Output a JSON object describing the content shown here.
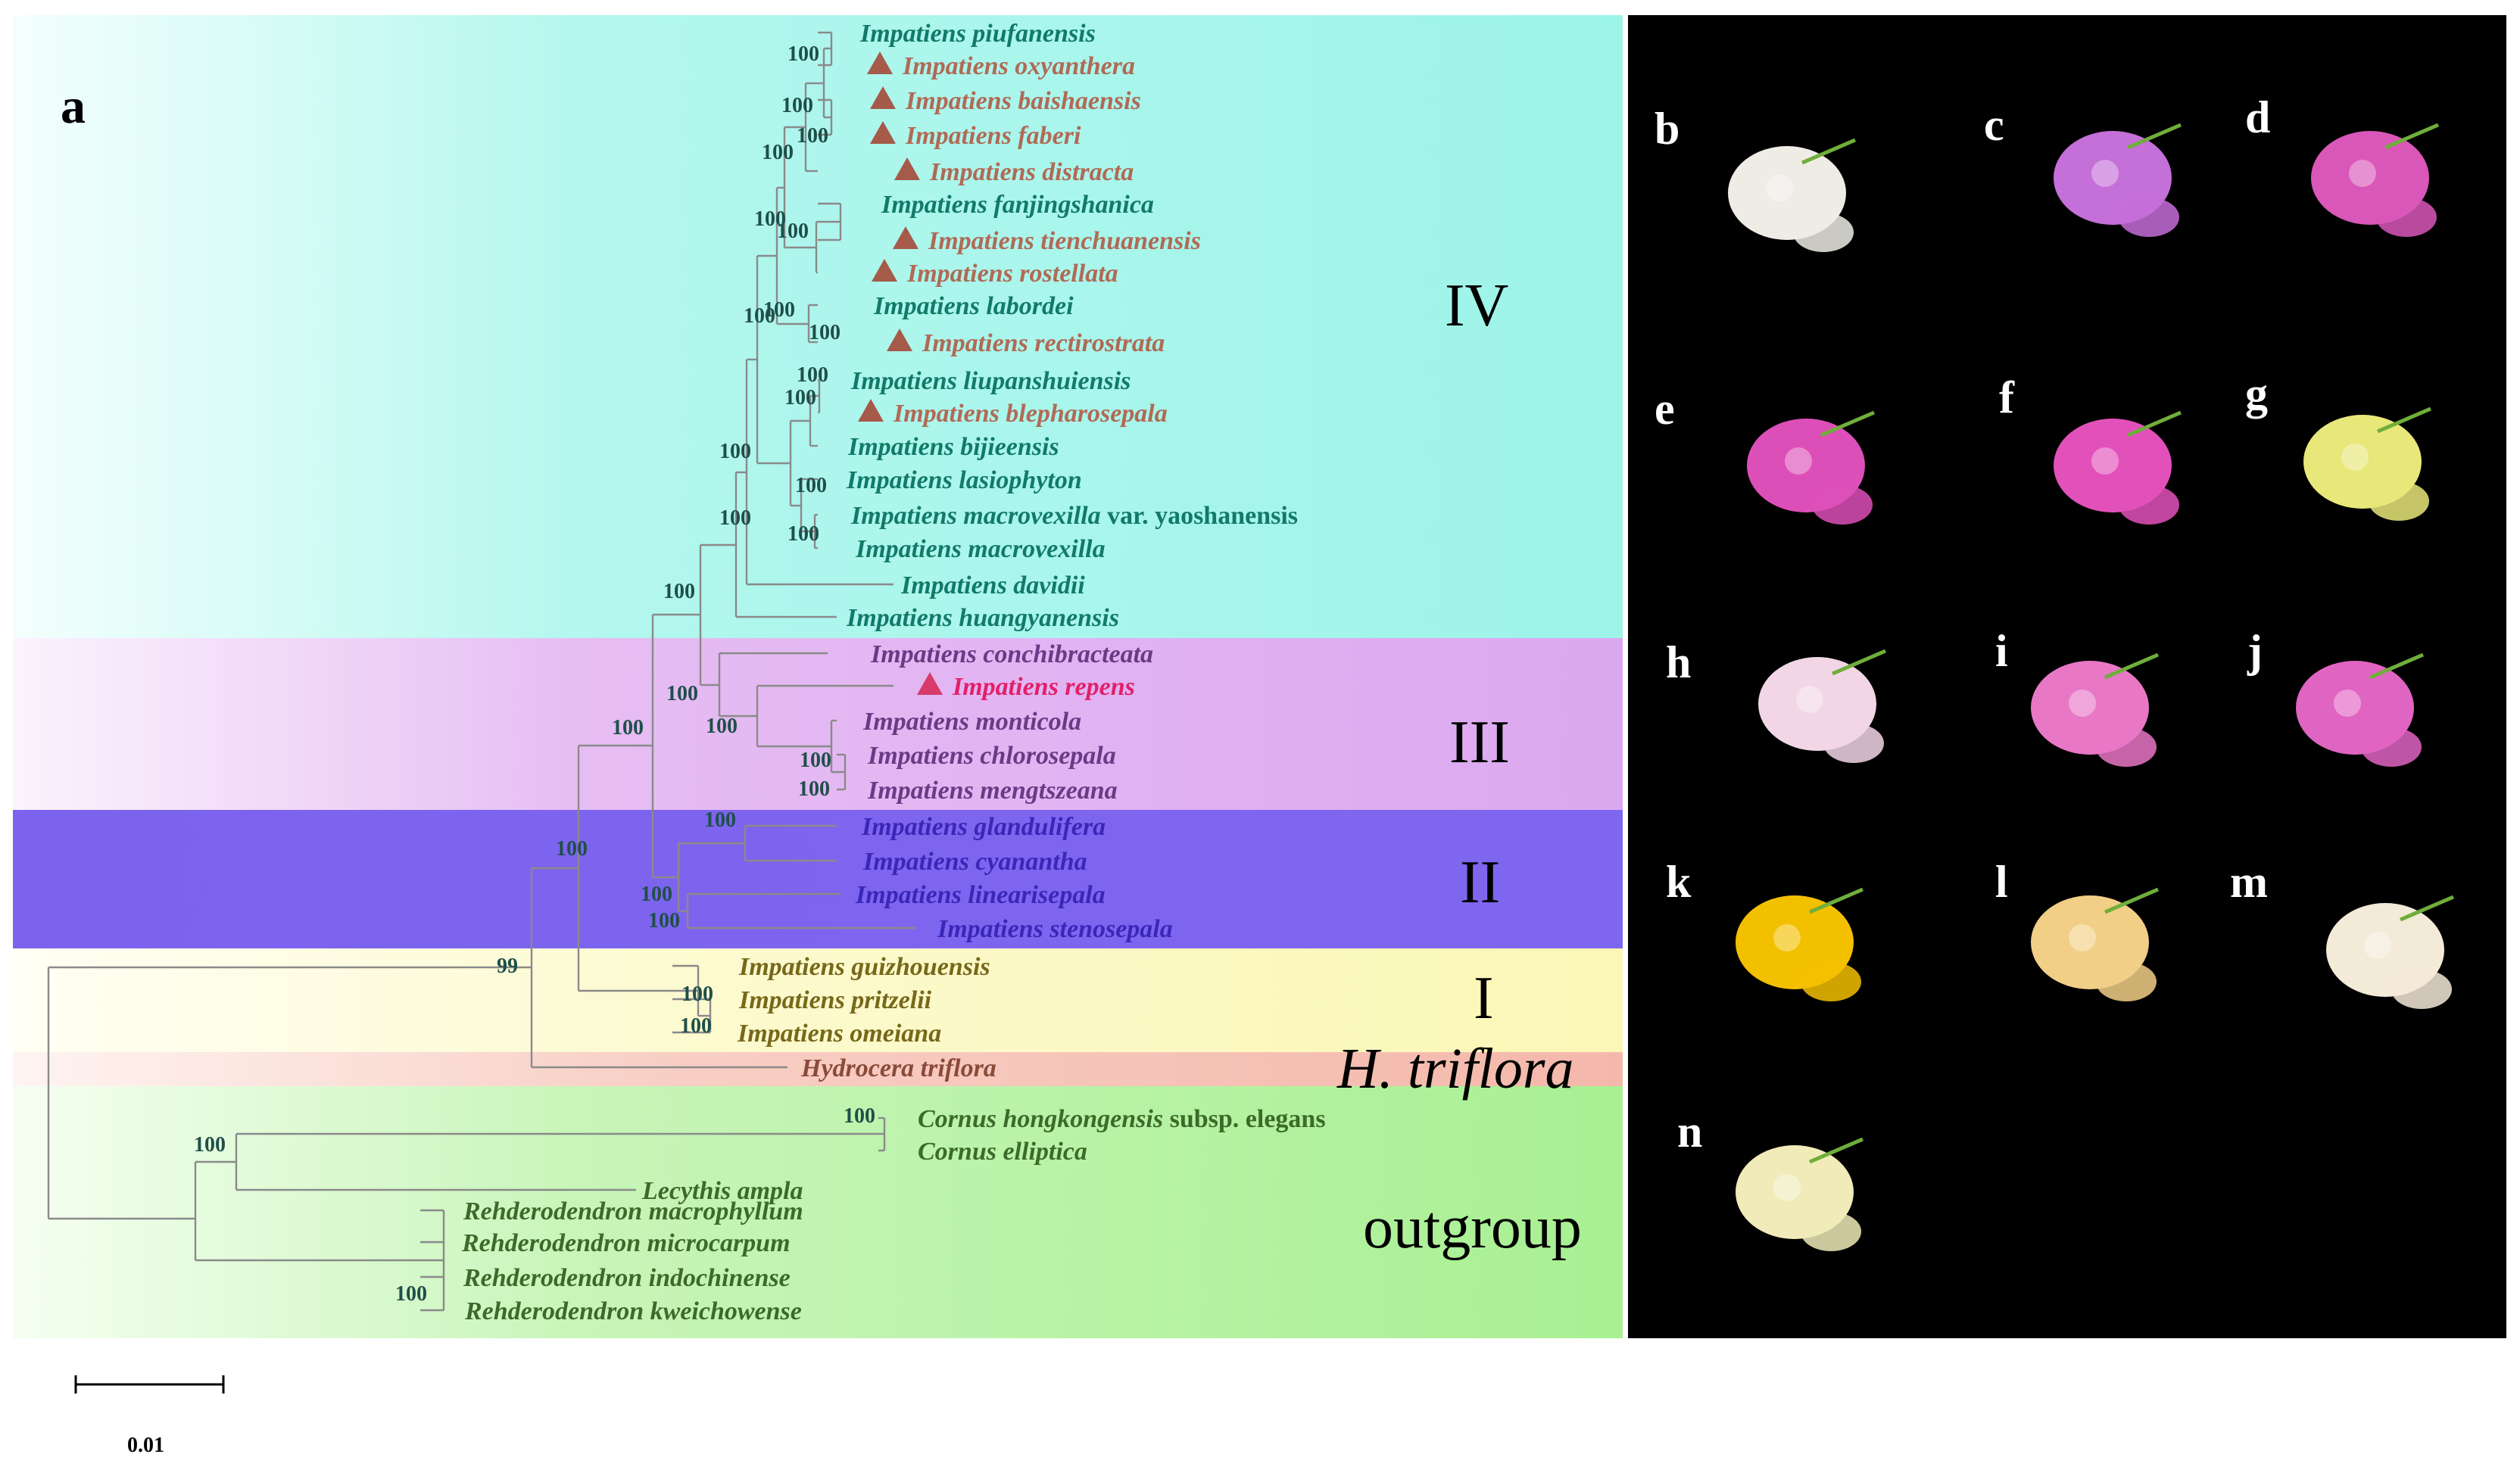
{
  "panel_label": "a",
  "scale_bar": {
    "label": "0.01"
  },
  "clades": [
    {
      "id": "IV",
      "label": "IV"
    },
    {
      "id": "III",
      "label": "III"
    },
    {
      "id": "II",
      "label": "II"
    },
    {
      "id": "I",
      "label": "I"
    },
    {
      "id": "htriflora",
      "label": "H. triflora"
    },
    {
      "id": "outgroup",
      "label": "outgroup"
    }
  ],
  "taxa": [
    {
      "name": "Impatiens piufanensis",
      "clade": "IV",
      "marked": false
    },
    {
      "name": "Impatiens oxyanthera",
      "clade": "IV",
      "marked": true
    },
    {
      "name": "Impatiens baishaensis",
      "clade": "IV",
      "marked": true
    },
    {
      "name": "Impatiens faberi",
      "clade": "IV",
      "marked": true
    },
    {
      "name": "Impatiens distracta",
      "clade": "IV",
      "marked": true
    },
    {
      "name": "Impatiens fanjingshanica",
      "clade": "IV",
      "marked": false
    },
    {
      "name": "Impatiens tienchuanensis",
      "clade": "IV",
      "marked": true
    },
    {
      "name": "Impatiens rostellata",
      "clade": "IV",
      "marked": true
    },
    {
      "name": "Impatiens labordei",
      "clade": "IV",
      "marked": false
    },
    {
      "name": "Impatiens rectirostrata",
      "clade": "IV",
      "marked": true
    },
    {
      "name": "Impatiens liupanshuiensis",
      "clade": "IV",
      "marked": false
    },
    {
      "name": "Impatiens blepharosepala",
      "clade": "IV",
      "marked": true
    },
    {
      "name": "Impatiens bijieensis",
      "clade": "IV",
      "marked": false
    },
    {
      "name": "Impatiens lasiophyton",
      "clade": "IV",
      "marked": false
    },
    {
      "name": "Impatiens macrovexilla",
      "suffix": " var. yaoshanensis",
      "clade": "IV",
      "marked": false
    },
    {
      "name": "Impatiens macrovexilla",
      "clade": "IV",
      "marked": false
    },
    {
      "name": "Impatiens davidii",
      "clade": "IV",
      "marked": false
    },
    {
      "name": "Impatiens huangyanensis",
      "clade": "IV",
      "marked": false
    },
    {
      "name": "Impatiens conchibracteata",
      "clade": "III",
      "marked": false
    },
    {
      "name": "Impatiens repens",
      "clade": "III",
      "marked": true,
      "highlight": true
    },
    {
      "name": "Impatiens monticola",
      "clade": "III",
      "marked": false
    },
    {
      "name": "Impatiens chlorosepala",
      "clade": "III",
      "marked": false
    },
    {
      "name": "Impatiens mengtszeana",
      "clade": "III",
      "marked": false
    },
    {
      "name": "Impatiens glandulifera",
      "clade": "II",
      "marked": false
    },
    {
      "name": "Impatiens cyanantha",
      "clade": "II",
      "marked": false
    },
    {
      "name": "Impatiens linearisepala",
      "clade": "II",
      "marked": false
    },
    {
      "name": "Impatiens stenosepala",
      "clade": "II",
      "marked": false
    },
    {
      "name": "Impatiens guizhouensis",
      "clade": "I",
      "marked": false
    },
    {
      "name": "Impatiens pritzelii",
      "clade": "I",
      "marked": false
    },
    {
      "name": "Impatiens omeiana",
      "clade": "I",
      "marked": false
    },
    {
      "name": "Hydrocera triflora",
      "clade": "htriflora",
      "marked": false
    },
    {
      "name": "Cornus hongkongensis",
      "suffix": " subsp. elegans",
      "clade": "outgroup",
      "marked": false
    },
    {
      "name": "Cornus elliptica",
      "clade": "outgroup",
      "marked": false
    },
    {
      "name": "Lecythis ampla",
      "clade": "outgroup",
      "marked": false
    },
    {
      "name": "Rehderodendron macrophyllum",
      "clade": "outgroup",
      "marked": false
    },
    {
      "name": "Rehderodendron microcarpum",
      "clade": "outgroup",
      "marked": false
    },
    {
      "name": "Rehderodendron indochinense",
      "clade": "outgroup",
      "marked": false
    },
    {
      "name": "Rehderodendron kweichowense",
      "clade": "outgroup",
      "marked": false
    }
  ],
  "bootstrap_values": [
    "100",
    "100",
    "100",
    "100",
    "100",
    "100",
    "100",
    "100",
    "100",
    "100",
    "100",
    "100",
    "100",
    "100",
    "100",
    "100",
    "100",
    "100",
    "100",
    "100",
    "100",
    "100",
    "100",
    "100",
    "100",
    "100",
    "100",
    "99",
    "100",
    "100",
    "100"
  ],
  "flower_panels": [
    {
      "letter": "b",
      "color": "#efece6"
    },
    {
      "letter": "c",
      "color": "#c56fd8"
    },
    {
      "letter": "d",
      "color": "#d957b8"
    },
    {
      "letter": "e",
      "color": "#dd4fb8"
    },
    {
      "letter": "f",
      "color": "#e251ba"
    },
    {
      "letter": "g",
      "color": "#e8e77a"
    },
    {
      "letter": "h",
      "color": "#f2d6e6"
    },
    {
      "letter": "i",
      "color": "#e877c6"
    },
    {
      "letter": "j",
      "color": "#e064c2"
    },
    {
      "letter": "k",
      "color": "#f3c000"
    },
    {
      "letter": "l",
      "color": "#f1cf86"
    },
    {
      "letter": "m",
      "color": "#f4ead8"
    },
    {
      "letter": "n",
      "color": "#f0ebb8"
    }
  ],
  "colors": {
    "clade_IV_bg": "#a7f6ec",
    "clade_III_bg": "#e3b5f2",
    "clade_II_bg": "#8067ef",
    "clade_I_bg": "#fbf8c1",
    "htriflora_bg": "#f6c3b8",
    "outgroup_bg": "#b6f2a3",
    "marked_text": "#b06a55",
    "highlight_text": "#e2206a",
    "triangle": "#a55a4a",
    "IV_text": "#127a68",
    "III_text": "#6a3a86",
    "II_text": "#3a27b8",
    "I_text": "#77681a",
    "htriflora_text": "#8a4a3a",
    "outgroup_text": "#3c6a2a"
  }
}
